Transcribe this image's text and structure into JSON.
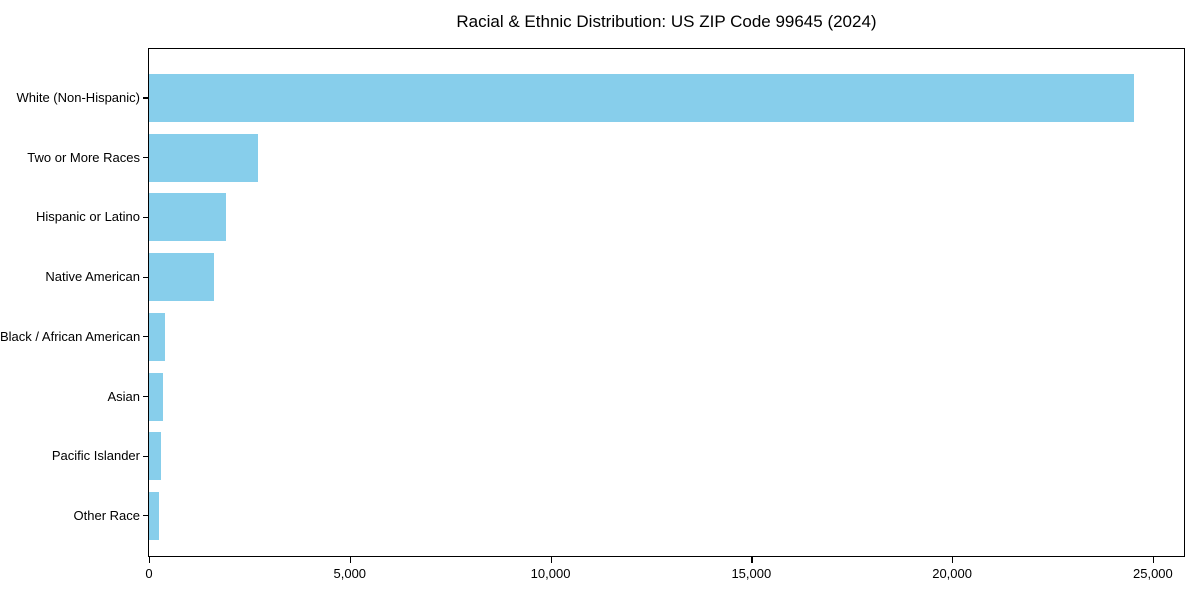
{
  "chart_data": {
    "type": "bar",
    "orientation": "horizontal",
    "title": "Racial & Ethnic Distribution: US ZIP Code 99645 (2024)",
    "categories": [
      "White (Non-Hispanic)",
      "Two or More Races",
      "Hispanic or Latino",
      "Native American",
      "Black / African American",
      "Asian",
      "Pacific Islander",
      "Other Race"
    ],
    "values": [
      24520,
      2705,
      1910,
      1615,
      400,
      345,
      310,
      250
    ],
    "xlabel": "",
    "ylabel": "",
    "xlim": [
      0,
      25750
    ],
    "x_ticks": [
      0,
      5000,
      10000,
      15000,
      20000,
      25000
    ],
    "x_tick_labels": [
      "0",
      "5,000",
      "10,000",
      "15,000",
      "20,000",
      "25,000"
    ],
    "bar_color": "#87CEEB",
    "grid": false,
    "legend": null,
    "background_color": "#ffffff",
    "spine_color": "#000000"
  }
}
